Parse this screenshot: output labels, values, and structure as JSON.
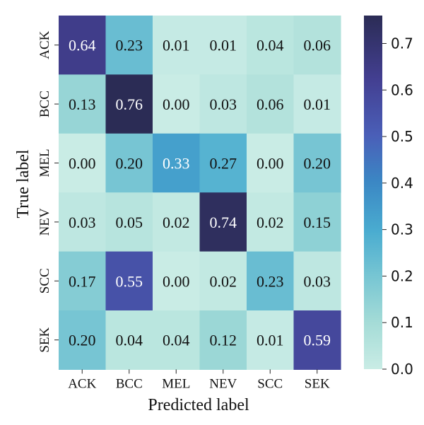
{
  "chart_data": {
    "type": "heatmap",
    "title": "",
    "xlabel": "Predicted label",
    "ylabel": "True label",
    "x_categories": [
      "ACK",
      "BCC",
      "MEL",
      "NEV",
      "SCC",
      "SEK"
    ],
    "y_categories": [
      "ACK",
      "BCC",
      "MEL",
      "NEV",
      "SCC",
      "SEK"
    ],
    "values": [
      [
        "0.64",
        "0.23",
        "0.01",
        "0.01",
        "0.04",
        "0.06"
      ],
      [
        "0.13",
        "0.76",
        "0.00",
        "0.03",
        "0.06",
        "0.01"
      ],
      [
        "0.00",
        "0.20",
        "0.33",
        "0.27",
        "0.00",
        "0.20"
      ],
      [
        "0.03",
        "0.05",
        "0.02",
        "0.74",
        "0.02",
        "0.15"
      ],
      [
        "0.17",
        "0.55",
        "0.00",
        "0.02",
        "0.23",
        "0.03"
      ],
      [
        "0.20",
        "0.04",
        "0.04",
        "0.12",
        "0.01",
        "0.59"
      ]
    ],
    "colorbar": {
      "range": [
        0.0,
        0.76
      ],
      "ticks": [
        "0.0",
        "0.1",
        "0.2",
        "0.3",
        "0.4",
        "0.5",
        "0.6",
        "0.7"
      ],
      "colormap": "YlGnBu-like (light aqua to dark indigo)"
    },
    "grid": false,
    "legend": "colorbar-right"
  }
}
